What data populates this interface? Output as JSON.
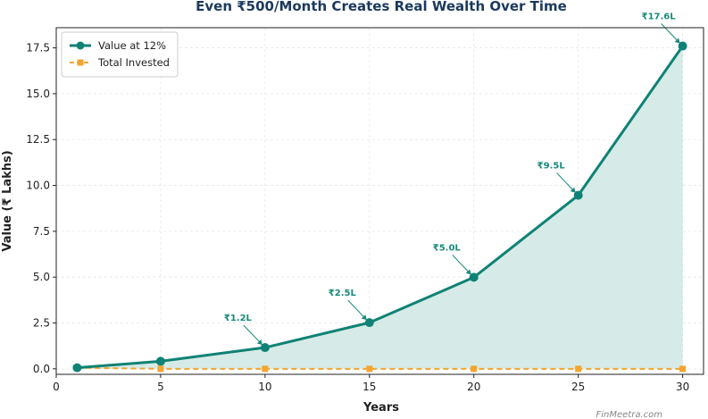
{
  "chart_data": {
    "type": "line",
    "title": "Even ₹500/Month Creates Real Wealth Over Time",
    "xlabel": "Years",
    "ylabel": "Value (₹ Lakhs)",
    "xlim": [
      0,
      31
    ],
    "ylim": [
      -0.3,
      18.6
    ],
    "xticks": [
      0,
      5,
      10,
      15,
      20,
      25,
      30
    ],
    "yticks": [
      0.0,
      2.5,
      5.0,
      7.5,
      10.0,
      12.5,
      15.0,
      17.5
    ],
    "ytick_labels": [
      "0.0",
      "2.5",
      "5.0",
      "7.5",
      "10.0",
      "12.5",
      "15.0",
      "17.5"
    ],
    "grid": true,
    "legend_position": "top-left",
    "x": [
      1,
      5,
      10,
      15,
      20,
      25,
      30
    ],
    "series": [
      {
        "name": "Value at 12%",
        "values": [
          0.06,
          0.41,
          1.16,
          2.52,
          4.99,
          9.46,
          17.6
        ],
        "color": "#0f8275",
        "style": "solid",
        "marker": "circle",
        "fill": "#cfe8e3"
      },
      {
        "name": "Total Invested",
        "values": [
          0.06,
          0.0,
          0.0,
          0.0,
          0.0,
          0.0,
          0.0
        ],
        "color": "#f2a530",
        "style": "dashed",
        "marker": "square"
      }
    ],
    "annotations": [
      {
        "x": 10,
        "y": 1.16,
        "text": "₹1.2L"
      },
      {
        "x": 15,
        "y": 2.52,
        "text": "₹2.5L"
      },
      {
        "x": 20,
        "y": 4.99,
        "text": "₹5.0L"
      },
      {
        "x": 25,
        "y": 9.46,
        "text": "₹9.5L"
      },
      {
        "x": 30,
        "y": 17.6,
        "text": "₹17.6L"
      }
    ],
    "watermark": "FinMeetra.com"
  }
}
